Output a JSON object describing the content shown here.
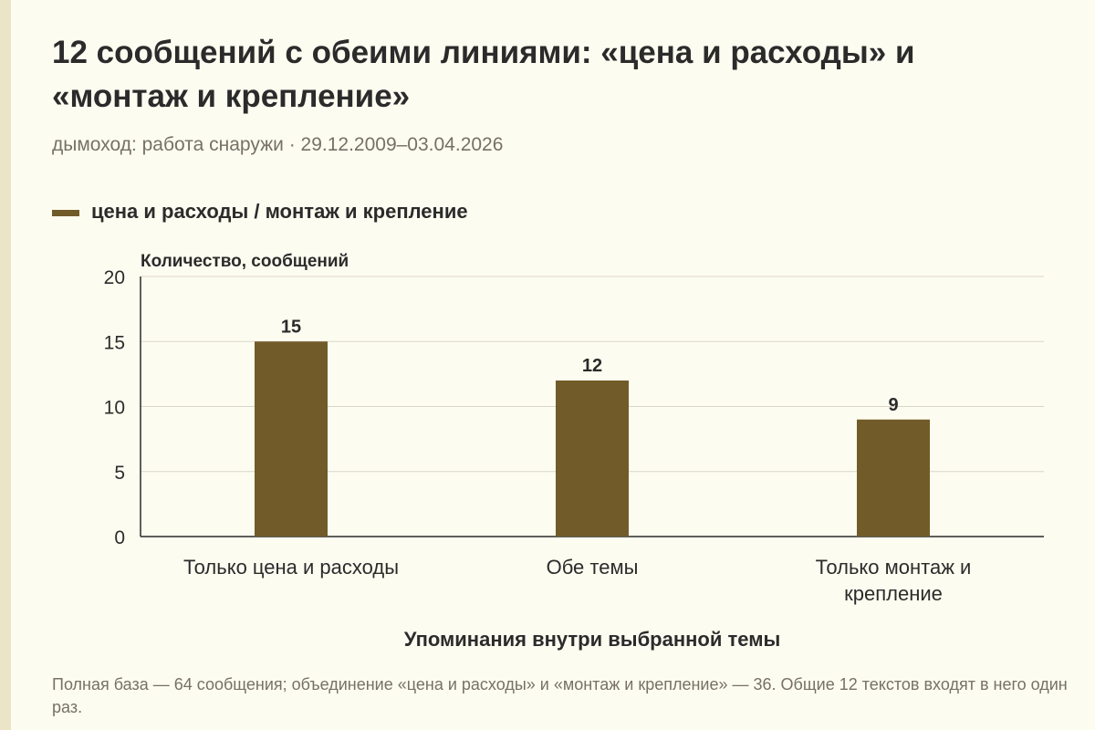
{
  "header": {
    "title": "12 сообщений с обеими линиями: «цена и расходы» и «монтаж и крепление»",
    "subtitle": "дымоход: работа снаружи · 29.12.2009–03.04.2026"
  },
  "colors": {
    "bar": "#715b28",
    "grid": "#dad6c8",
    "axis": "#2b2b2b",
    "text": "#2b2b2b",
    "muted": "#777065"
  },
  "chart_data": {
    "type": "bar",
    "ylabel": "Количество, сообщений",
    "xlabel": "Упоминания внутри выбранной темы",
    "ylim": [
      0,
      20
    ],
    "yticks": [
      0,
      5,
      10,
      15,
      20
    ],
    "grid": true,
    "legend_position": "top-left",
    "categories": [
      [
        "Только цена и расходы"
      ],
      [
        "Обе темы"
      ],
      [
        "Только монтаж и",
        "крепление"
      ]
    ],
    "series": [
      {
        "name": "цена и расходы / монтаж и крепление",
        "values": [
          15,
          12,
          9
        ]
      }
    ]
  },
  "note": "Полная база — 64 сообщения; объединение «цена и расходы» и «монтаж и крепление» — 36. Общие 12 текстов входят в него один раз."
}
